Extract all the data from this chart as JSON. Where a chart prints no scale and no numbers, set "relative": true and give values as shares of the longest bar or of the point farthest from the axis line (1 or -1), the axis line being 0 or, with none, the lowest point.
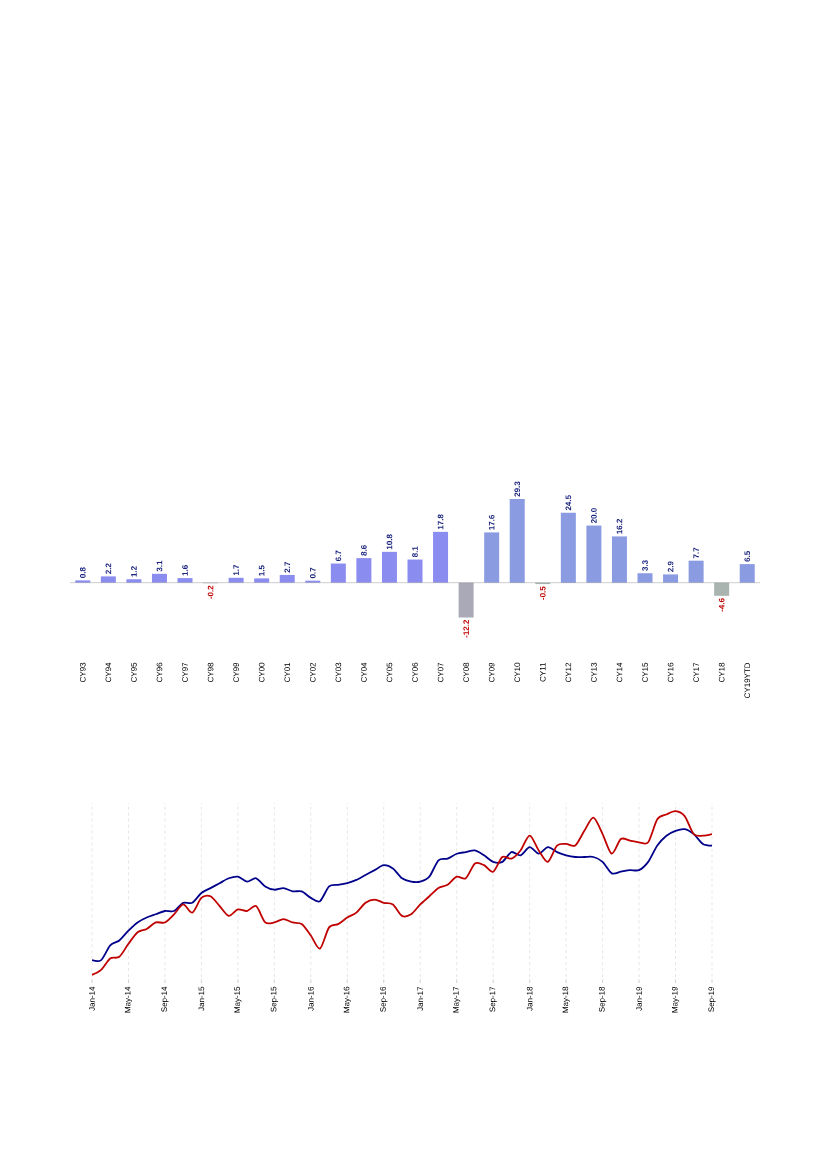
{
  "chart_data": [
    {
      "type": "bar",
      "categories": [
        "CY93",
        "CY94",
        "CY95",
        "CY96",
        "CY97",
        "CY98",
        "CY99",
        "CY00",
        "CY01",
        "CY02",
        "CY03",
        "CY04",
        "CY05",
        "CY06",
        "CY07",
        "CY08",
        "CY09",
        "CY10",
        "CY11",
        "CY12",
        "CY13",
        "CY14",
        "CY15",
        "CY16",
        "CY17",
        "CY18",
        "CY19YTD"
      ],
      "values": [
        0.8,
        2.2,
        1.2,
        3.1,
        1.6,
        -0.2,
        1.7,
        1.5,
        2.7,
        0.7,
        6.7,
        8.6,
        10.8,
        8.1,
        17.8,
        -12.2,
        17.6,
        29.3,
        -0.5,
        24.5,
        20.0,
        16.2,
        3.3,
        2.9,
        7.7,
        -4.6,
        6.5
      ],
      "colors": [
        "#8b8cf0",
        "#8b8cf0",
        "#8b8cf0",
        "#8b8cf0",
        "#8b8cf0",
        "#a9a9b8",
        "#8b8cf0",
        "#8b8cf0",
        "#8b8cf0",
        "#8b8cf0",
        "#8b8cf0",
        "#8b8cf0",
        "#8b8cf0",
        "#8b8cf0",
        "#8b8cf0",
        "#a9a9b8",
        "#8a9be2",
        "#8a9be2",
        "#a9b3b0",
        "#8a9be2",
        "#8a9be2",
        "#8a9be2",
        "#8a9be2",
        "#8a9be2",
        "#8a9be2",
        "#a9b3b0",
        "#8a9be2"
      ],
      "value_labels": [
        "0.8",
        "2.2",
        "1.2",
        "3.1",
        "1.6",
        "-0.2",
        "1.7",
        "1.5",
        "2.7",
        "0.7",
        "6.7",
        "8.6",
        "10.8",
        "8.1",
        "17.8",
        "-12.2",
        "17.6",
        "29.3",
        "-0.5",
        "24.5",
        "20.0",
        "16.2",
        "3.3",
        "2.9",
        "7.7",
        "-4.6",
        "6.5"
      ]
    },
    {
      "type": "line",
      "relative": true,
      "grid": "x",
      "x": [
        "2014-01",
        "2014-02",
        "2014-03",
        "2014-04",
        "2014-05",
        "2014-06",
        "2014-07",
        "2014-08",
        "2014-09",
        "2014-10",
        "2014-11",
        "2014-12",
        "2015-01",
        "2015-02",
        "2015-03",
        "2015-04",
        "2015-05",
        "2015-06",
        "2015-07",
        "2015-08",
        "2015-09",
        "2015-10",
        "2015-11",
        "2015-12",
        "2016-01",
        "2016-02",
        "2016-03",
        "2016-04",
        "2016-05",
        "2016-06",
        "2016-07",
        "2016-08",
        "2016-09",
        "2016-10",
        "2016-11",
        "2016-12",
        "2017-01",
        "2017-02",
        "2017-03",
        "2017-04",
        "2017-05",
        "2017-06",
        "2017-07",
        "2017-08",
        "2017-09",
        "2017-10",
        "2017-11",
        "2017-12",
        "2018-01",
        "2018-02",
        "2018-03",
        "2018-04",
        "2018-05",
        "2018-06",
        "2018-07",
        "2018-08",
        "2018-09",
        "2018-10",
        "2018-11",
        "2018-12",
        "2019-01",
        "2019-02",
        "2019-03",
        "2019-04",
        "2019-05",
        "2019-06",
        "2019-07",
        "2019-08",
        "2019-09"
      ],
      "xlim": [
        "2014-01",
        "2019-09"
      ],
      "xticks": [
        {
          "value": "2014-01",
          "label": "Jan-14"
        },
        {
          "value": "2014-05",
          "label": "May-14"
        },
        {
          "value": "2014-09",
          "label": "Sep-14"
        },
        {
          "value": "2015-01",
          "label": "Jan-15"
        },
        {
          "value": "2015-05",
          "label": "May-15"
        },
        {
          "value": "2015-09",
          "label": "Sep-15"
        },
        {
          "value": "2016-01",
          "label": "Jan-16"
        },
        {
          "value": "2016-05",
          "label": "May-16"
        },
        {
          "value": "2016-09",
          "label": "Sep-16"
        },
        {
          "value": "2017-01",
          "label": "Jan-17"
        },
        {
          "value": "2017-05",
          "label": "May-17"
        },
        {
          "value": "2017-09",
          "label": "Sep-17"
        },
        {
          "value": "2018-01",
          "label": "Jan-18"
        },
        {
          "value": "2018-05",
          "label": "May-18"
        },
        {
          "value": "2018-09",
          "label": "Sep-18"
        },
        {
          "value": "2019-01",
          "label": "Jan-19"
        },
        {
          "value": "2019-05",
          "label": "May-19"
        },
        {
          "value": "2019-09",
          "label": "Sep-19"
        }
      ],
      "series": [
        {
          "color": "#00008b",
          "values": [
            0.09,
            0.09,
            0.18,
            0.21,
            0.27,
            0.32,
            0.35,
            0.37,
            0.39,
            0.39,
            0.44,
            0.44,
            0.5,
            0.53,
            0.56,
            0.59,
            0.6,
            0.57,
            0.59,
            0.54,
            0.52,
            0.53,
            0.51,
            0.51,
            0.47,
            0.45,
            0.54,
            0.55,
            0.56,
            0.58,
            0.61,
            0.64,
            0.67,
            0.65,
            0.59,
            0.57,
            0.57,
            0.6,
            0.7,
            0.71,
            0.74,
            0.75,
            0.76,
            0.73,
            0.69,
            0.69,
            0.75,
            0.73,
            0.78,
            0.74,
            0.78,
            0.75,
            0.73,
            0.72,
            0.72,
            0.72,
            0.69,
            0.62,
            0.63,
            0.64,
            0.64,
            0.69,
            0.79,
            0.85,
            0.88,
            0.89,
            0.86,
            0.8,
            0.79
          ]
        },
        {
          "color": "#c00000",
          "values": [
            0,
            0.03,
            0.1,
            0.11,
            0.19,
            0.26,
            0.28,
            0.32,
            0.32,
            0.37,
            0.43,
            0.38,
            0.47,
            0.48,
            0.42,
            0.36,
            0.4,
            0.39,
            0.42,
            0.32,
            0.32,
            0.34,
            0.32,
            0.31,
            0.24,
            0.16,
            0.29,
            0.31,
            0.35,
            0.38,
            0.44,
            0.46,
            0.44,
            0.43,
            0.36,
            0.37,
            0.43,
            0.48,
            0.53,
            0.55,
            0.6,
            0.59,
            0.68,
            0.67,
            0.63,
            0.72,
            0.71,
            0.76,
            0.85,
            0.76,
            0.69,
            0.79,
            0.8,
            0.79,
            0.88,
            0.96,
            0.86,
            0.74,
            0.83,
            0.82,
            0.81,
            0.81,
            0.95,
            0.98,
            1,
            0.97,
            0.86,
            0.85,
            0.86
          ]
        }
      ]
    }
  ]
}
